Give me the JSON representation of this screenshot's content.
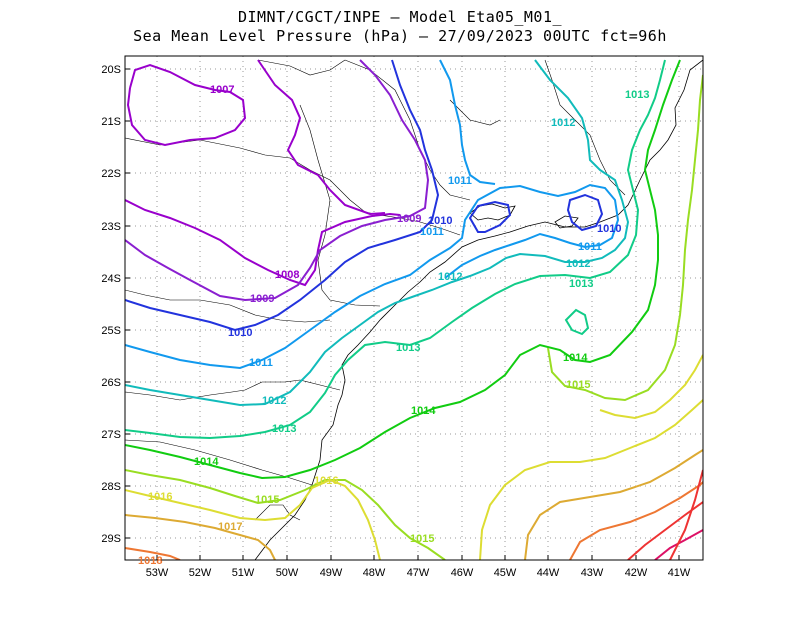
{
  "header": {
    "title_line1": "DIMNT/CGCT/INPE –  Model Eta05_M01_",
    "title_line2": "Sea Mean Level Pressure (hPa) – 27/09/2023 00UTC fct=96h"
  },
  "map": {
    "lat_labels": [
      "20S",
      "21S",
      "22S",
      "23S",
      "24S",
      "25S",
      "26S",
      "27S",
      "28S",
      "29S"
    ],
    "lon_labels": [
      "53W",
      "52W",
      "51W",
      "50W",
      "49W",
      "48W",
      "47W",
      "46W",
      "45W",
      "44W",
      "43W",
      "42W",
      "41W"
    ],
    "colors": {
      "1007": "#9900cc",
      "1008": "#9900cc",
      "1009": "#8a1fd0",
      "1010": "#2233dd",
      "1011": "#1199ee",
      "1012": "#11bbbb",
      "1013": "#11cc88",
      "1014": "#11cc11",
      "1015": "#99dd22",
      "1016": "#dddd33",
      "1017": "#ddaa33",
      "1018": "#ee7733",
      "1019": "#ee3333",
      "1020": "#dd1166",
      "coast": "#000000",
      "grid": "#999999"
    },
    "contour_labels": {
      "l1007": "1007",
      "l1008": "1008",
      "l1009a": "1009",
      "l1009b": "1009",
      "l1010a": "1010",
      "l1010b": "1010",
      "l1010c": "1010",
      "l1011a": "1011",
      "l1011b": "1011",
      "l1011c": "1011",
      "l1011d": "1011",
      "l1012a": "1012",
      "l1012b": "1012",
      "l1012c": "1012",
      "l1012d": "1012",
      "l1013a": "1013",
      "l1013b": "1013",
      "l1013c": "1013",
      "l1013d": "1013",
      "l1014a": "1014",
      "l1014b": "1014",
      "l1014c": "1014",
      "l1015a": "1015",
      "l1015b": "1015",
      "l1015c": "1015",
      "l1016a": "1016",
      "l1016b": "1016",
      "l1017": "1017",
      "l1018": "1018"
    }
  }
}
